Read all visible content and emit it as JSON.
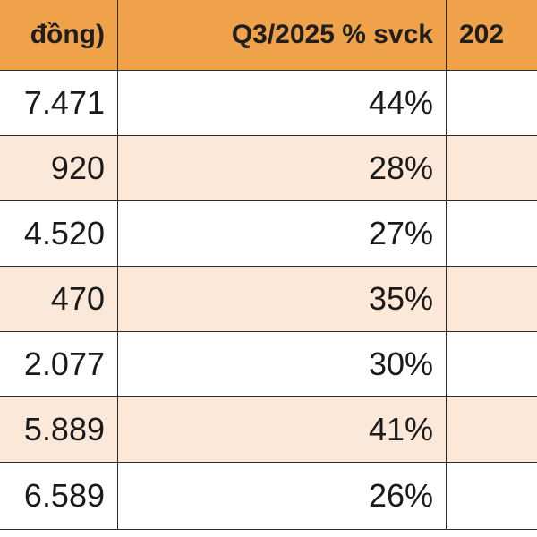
{
  "table": {
    "headers": [
      "đồng)",
      "Q3/2025 % svck",
      "202"
    ],
    "rows": [
      {
        "col1": "7.471",
        "col2": "44%",
        "col3": "",
        "shaded": false
      },
      {
        "col1": "920",
        "col2": "28%",
        "col3": "",
        "shaded": true
      },
      {
        "col1": "4.520",
        "col2": "27%",
        "col3": "",
        "shaded": false
      },
      {
        "col1": "470",
        "col2": "35%",
        "col3": "",
        "shaded": true
      },
      {
        "col1": "2.077",
        "col2": "30%",
        "col3": "",
        "shaded": false
      },
      {
        "col1": "5.889",
        "col2": "41%",
        "col3": "",
        "shaded": true
      },
      {
        "col1": "6.589",
        "col2": "26%",
        "col3": "",
        "shaded": false
      }
    ]
  },
  "colors": {
    "header_bg": "#f0a24a",
    "shaded_row_bg": "#fce8d8",
    "grid_line": "#2b2b2b"
  }
}
